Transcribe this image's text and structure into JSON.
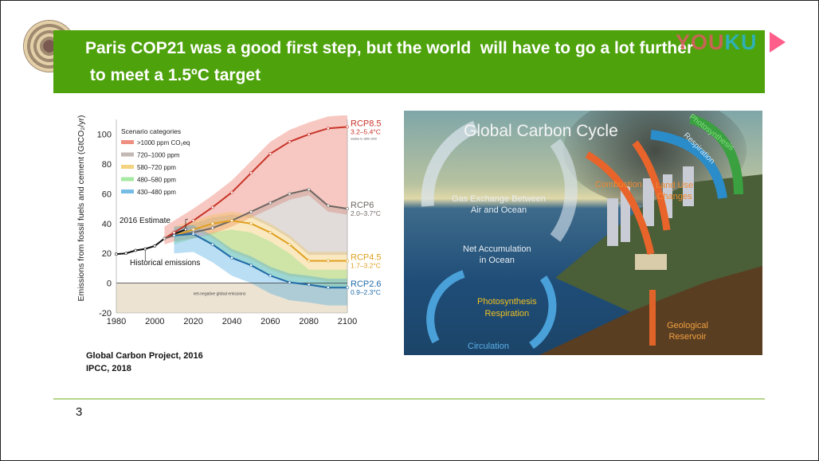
{
  "slide": {
    "title": "Paris COP21 was a good first step, but the world  will have to go a lot further\n to meet a 1.5ºC target",
    "page_number": "3",
    "sources": [
      "Global Carbon Project, 2016",
      "IPCC, 2018"
    ],
    "accent_color": "#4ea20b"
  },
  "watermark": {
    "text_y": "YOU",
    "text_k": "KU"
  },
  "chart_data": {
    "type": "line",
    "ylabel": "Emissions from fossil fuels and cement (GtCO₂/yr)",
    "xlim": [
      1980,
      2100
    ],
    "ylim": [
      -20,
      110
    ],
    "xticks": [
      "1980",
      "2000",
      "2020",
      "2040",
      "2060",
      "2080",
      "2100"
    ],
    "yticks": [
      "-20",
      "0",
      "20",
      "40",
      "60",
      "80",
      "100"
    ],
    "legend_title": "Scenario categories",
    "legend_placement": "top-left",
    "legend": [
      {
        "label": ">1000 ppm CO₂eq",
        "color": "#e8604c"
      },
      {
        "label": "720–1000 ppm",
        "color": "#a89a94"
      },
      {
        "label": "580–720 ppm",
        "color": "#f0c04a"
      },
      {
        "label": "480–580 ppm",
        "color": "#7fe07a"
      },
      {
        "label": "430–480 ppm",
        "color": "#3aa0dc"
      }
    ],
    "annotations": {
      "estimate": "2016 Estimate",
      "historical": "Historical emissions",
      "negative": "net-negative global emissions",
      "baseline_note": "relative to 1850-1900"
    },
    "series": [
      {
        "name": "Historical emissions",
        "color": "#111111",
        "x": [
          1980,
          1985,
          1990,
          1995,
          2000,
          2005,
          2010,
          2016
        ],
        "y": [
          19.5,
          20,
          22,
          23,
          25,
          30,
          33,
          36
        ]
      },
      {
        "name": "RCP8.5",
        "range": "3.2–5.4°C",
        "color": "#c8342a",
        "x": [
          2005,
          2010,
          2020,
          2030,
          2040,
          2050,
          2060,
          2070,
          2080,
          2090,
          2100
        ],
        "y": [
          30,
          34,
          42,
          51,
          61,
          74,
          87,
          95,
          100,
          104,
          105
        ]
      },
      {
        "name": "RCP6",
        "range": "2.0–3.7°C",
        "color": "#6e6662",
        "x": [
          2005,
          2010,
          2020,
          2030,
          2040,
          2050,
          2060,
          2070,
          2080,
          2090,
          2100
        ],
        "y": [
          30,
          32,
          34,
          37,
          42,
          48,
          54,
          60,
          63,
          52,
          50
        ]
      },
      {
        "name": "RCP4.5",
        "range": "1.7–3.2°C",
        "color": "#e0a020",
        "x": [
          2010,
          2020,
          2030,
          2040,
          2050,
          2060,
          2070,
          2080,
          2090,
          2100
        ],
        "y": [
          32,
          36,
          40,
          42,
          40,
          34,
          26,
          15,
          15,
          15
        ]
      },
      {
        "name": "RCP2.6",
        "range": "0.9–2.3°C",
        "color": "#1f6aa8",
        "x": [
          2010,
          2020,
          2030,
          2040,
          2050,
          2060,
          2070,
          2080,
          2090,
          2100
        ],
        "y": [
          32,
          33,
          26,
          17,
          12,
          5,
          0.5,
          -1,
          -3,
          -3
        ]
      }
    ]
  },
  "carbon_cycle": {
    "title": "Global Carbon Cycle",
    "labels": {
      "gas_exchange": "Gas Exchange Between\nAir and Ocean",
      "net_accumulation": "Net Accumulation\nin Ocean",
      "ocean_photosynthesis": "Photosynthesis\nRespiration",
      "circulation": "Circulation",
      "combustion": "Combustion",
      "land_use": "Land Use\nChanges",
      "photosynthesis": "Photosynthesis",
      "respiration": "Respiration",
      "geological": "Geological\nReservoir"
    }
  }
}
